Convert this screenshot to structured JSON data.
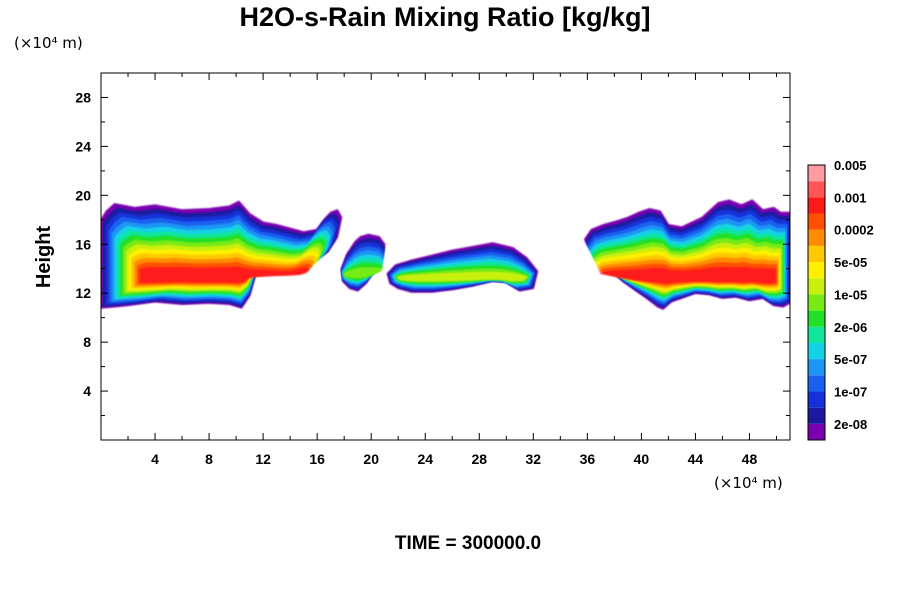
{
  "chart_data": {
    "type": "contour",
    "title": "H2O-s-Rain Mixing Ratio [kg/kg]",
    "x_unit": "(×10⁴ m)",
    "y_unit": "(×10⁴ m)",
    "ylabel": "Height",
    "xlabel": "",
    "time_label": "TIME = 300000.0",
    "xlim": [
      0,
      51
    ],
    "ylim": [
      0,
      30
    ],
    "x_ticks": [
      4,
      8,
      12,
      16,
      20,
      24,
      28,
      32,
      36,
      40,
      44,
      48
    ],
    "x_tick_labels": [
      "4",
      "8",
      "12",
      "16",
      "20",
      "24",
      "28",
      "32",
      "36",
      "40",
      "44",
      "48"
    ],
    "y_ticks": [
      4,
      8,
      12,
      16,
      20,
      24,
      28
    ],
    "y_tick_labels": [
      "4",
      "8",
      "12",
      "16",
      "20",
      "24",
      "28"
    ],
    "colorbar": {
      "levels": [
        "2e-08",
        "1e-07",
        "5e-07",
        "2e-06",
        "1e-05",
        "5e-05",
        "0.0002",
        "0.001",
        "0.005"
      ],
      "colors": [
        "#7a00b0",
        "#1a1aa0",
        "#1530d8",
        "#1a60f0",
        "#1c96f4",
        "#14d2e6",
        "#10e69a",
        "#22e028",
        "#78ea14",
        "#c8f00a",
        "#fff000",
        "#ffc800",
        "#ff8c00",
        "#ff5000",
        "#ff1a1a",
        "#ff5555",
        "#ff9aa0"
      ]
    },
    "series": [
      {
        "x": [
          0.0,
          0.4,
          1.0,
          2.5,
          4.0,
          6.0,
          8.0,
          9.5,
          10.2,
          11.0,
          12.0,
          13.0,
          14.0,
          15.0,
          16.0,
          16.5,
          17.0,
          17.5,
          17.8,
          17.5,
          16.8,
          15.5,
          14.0,
          12.5,
          11.5,
          11.0,
          10.4,
          9.5,
          8.0,
          6.0,
          4.0,
          2.0,
          1.0,
          0.0
        ],
        "y": [
          18.0,
          18.7,
          19.3,
          19.0,
          19.2,
          18.8,
          18.9,
          19.1,
          19.5,
          18.5,
          17.8,
          17.6,
          17.3,
          17.0,
          17.2,
          18.0,
          18.6,
          18.8,
          18.2,
          16.6,
          15.4,
          15.0,
          14.8,
          14.4,
          13.8,
          11.8,
          10.8,
          11.1,
          11.2,
          11.1,
          11.3,
          11.0,
          10.9,
          10.8
        ]
      },
      {
        "x": [
          17.8,
          18.2,
          18.8,
          19.2,
          19.8,
          20.6,
          21.0,
          20.8,
          20.2,
          19.6,
          19.0,
          18.4,
          17.9
        ],
        "y": [
          14.0,
          15.2,
          16.2,
          16.6,
          16.8,
          16.6,
          16.0,
          15.0,
          13.8,
          12.8,
          12.2,
          12.4,
          13.0
        ]
      },
      {
        "x": [
          21.2,
          21.8,
          23.0,
          24.5,
          26.0,
          27.5,
          29.0,
          30.5,
          31.5,
          32.3,
          32.0,
          31.0,
          30.0,
          29.0,
          27.5,
          26.0,
          24.5,
          23.0,
          22.0,
          21.4
        ],
        "y": [
          13.6,
          14.3,
          14.7,
          15.1,
          15.5,
          15.8,
          16.1,
          15.7,
          14.9,
          13.8,
          12.4,
          12.2,
          12.9,
          13.0,
          12.6,
          12.3,
          12.1,
          12.1,
          12.4,
          12.8
        ]
      },
      {
        "x": [
          35.8,
          36.3,
          37.2,
          38.2,
          39.0,
          39.8,
          40.6,
          41.4,
          42.0,
          43.0,
          44.5,
          45.7,
          46.5,
          47.4,
          48.2,
          49.0,
          49.8,
          50.3,
          51.0,
          51.0,
          50.5,
          49.8,
          49.0,
          48.0,
          47.0,
          46.0,
          45.0,
          44.0,
          43.0,
          42.2,
          41.6,
          41.2,
          40.5,
          39.6,
          38.6,
          37.6,
          36.6
        ],
        "y": [
          16.4,
          17.2,
          17.6,
          17.9,
          18.2,
          18.6,
          18.9,
          18.7,
          17.6,
          17.4,
          18.2,
          19.4,
          19.6,
          19.2,
          19.6,
          18.8,
          19.0,
          18.6,
          18.6,
          11.2,
          10.9,
          11.0,
          11.6,
          11.4,
          11.7,
          11.6,
          11.9,
          12.0,
          11.6,
          11.3,
          10.7,
          10.9,
          11.5,
          12.2,
          13.0,
          14.0,
          15.2
        ]
      }
    ]
  }
}
